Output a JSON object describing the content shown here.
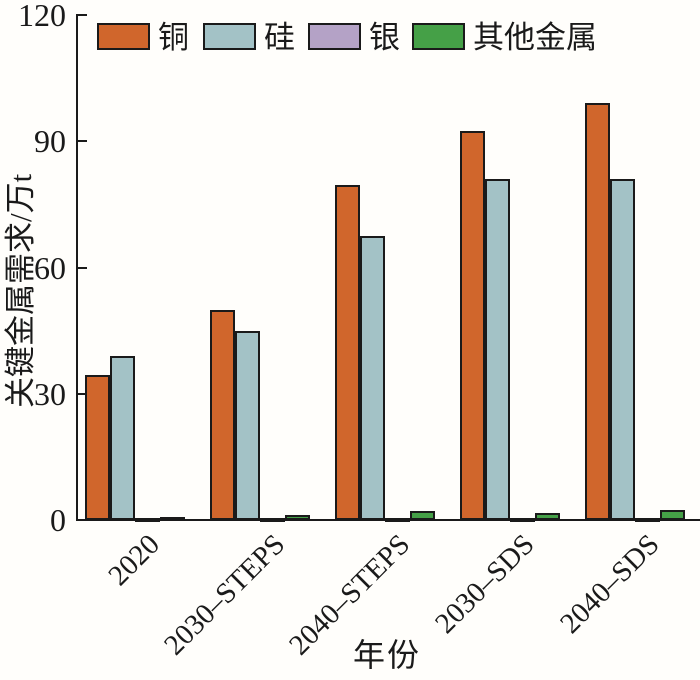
{
  "chart_data": {
    "type": "bar",
    "title": "",
    "xlabel": "年份",
    "ylabel": "关键金属需求/万t",
    "ylim": [
      0,
      120
    ],
    "yticks": [
      0,
      30,
      60,
      90,
      120
    ],
    "grid": false,
    "legend_position": "top",
    "categories": [
      "2020",
      "2030–STEPS",
      "2040–STEPS",
      "2030–SDS",
      "2040–SDS"
    ],
    "series": [
      {
        "name": "铜",
        "color": "#d0662c",
        "values": [
          34.5,
          50.0,
          79.5,
          92.5,
          99.0
        ]
      },
      {
        "name": "硅",
        "color": "#a3c2c6",
        "values": [
          39.0,
          45.0,
          67.5,
          81.0,
          81.0
        ]
      },
      {
        "name": "银",
        "color": "#b4a2c6",
        "values": [
          0.3,
          0.3,
          0.4,
          0.3,
          0.4
        ]
      },
      {
        "name": "其他金属",
        "color": "#45a047",
        "values": [
          0.7,
          1.2,
          2.2,
          1.6,
          2.4
        ]
      }
    ]
  },
  "colors": {
    "axis": "#1a1a1a",
    "background": "#fffefb"
  }
}
